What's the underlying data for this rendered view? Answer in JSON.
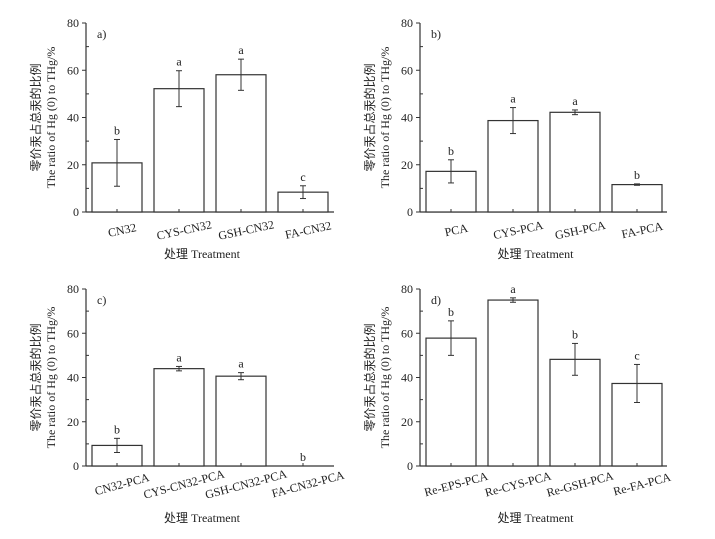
{
  "chart_data": [
    {
      "type": "bar",
      "panel_label": "a)",
      "categories": [
        "CN32",
        "CYS-CN32",
        "GSH-CN32",
        "FA-CN32"
      ],
      "values": [
        20.8,
        52.2,
        58.1,
        8.4
      ],
      "errors": [
        9.9,
        7.6,
        6.6,
        2.7
      ],
      "significance": [
        "b",
        "a",
        "a",
        "c"
      ],
      "xlabel": "处理 Treatment",
      "ylabel_cn": "零价汞占总汞的比例",
      "ylabel_en": "The ratio of Hg (0) to THg/%",
      "ylim": [
        0,
        80
      ],
      "yticks": [
        0,
        20,
        40,
        60,
        80
      ],
      "grid": false
    },
    {
      "type": "bar",
      "panel_label": "b)",
      "categories": [
        "PCA",
        "CYS-PCA",
        "GSH-PCA",
        "FA-PCA"
      ],
      "values": [
        17.2,
        38.7,
        42.2,
        11.6
      ],
      "errors": [
        4.9,
        5.5,
        1.0,
        0.3
      ],
      "significance": [
        "b",
        "a",
        "a",
        "b"
      ],
      "xlabel": "处理 Treatment",
      "ylabel_cn": "零价汞占总汞的比例",
      "ylabel_en": "The ratio of Hg (0) to THg/%",
      "ylim": [
        0,
        80
      ],
      "yticks": [
        0,
        20,
        40,
        60,
        80
      ],
      "grid": false
    },
    {
      "type": "bar",
      "panel_label": "c)",
      "categories": [
        "CN32-PCA",
        "CYS-CN32-PCA",
        "GSH-CN32-PCA",
        "FA-CN32-PCA"
      ],
      "values": [
        9.3,
        44.0,
        40.6,
        0
      ],
      "errors": [
        3.2,
        1.0,
        1.6,
        0
      ],
      "significance": [
        "b",
        "a",
        "a",
        "b"
      ],
      "xlabel": "处理 Treatment",
      "ylabel_cn": "零价汞占总汞的比例",
      "ylabel_en": "The ratio of Hg (0) to THg/%",
      "ylim": [
        0,
        80
      ],
      "yticks": [
        0,
        20,
        40,
        60,
        80
      ],
      "grid": false
    },
    {
      "type": "bar",
      "panel_label": "d)",
      "categories": [
        "Re-EPS-PCA",
        "Re-CYS-PCA",
        "Re-GSH-PCA",
        "Re-FA-PCA"
      ],
      "values": [
        57.8,
        75.0,
        48.2,
        37.3
      ],
      "errors": [
        7.8,
        1.0,
        7.2,
        8.6
      ],
      "significance": [
        "b",
        "a",
        "b",
        "c"
      ],
      "xlabel": "处理 Treatment",
      "ylabel_cn": "零价汞占总汞的比例",
      "ylabel_en": "The ratio of Hg (0) to THg/%",
      "ylim": [
        0,
        80
      ],
      "yticks": [
        0,
        20,
        40,
        60,
        80
      ],
      "grid": false
    }
  ]
}
